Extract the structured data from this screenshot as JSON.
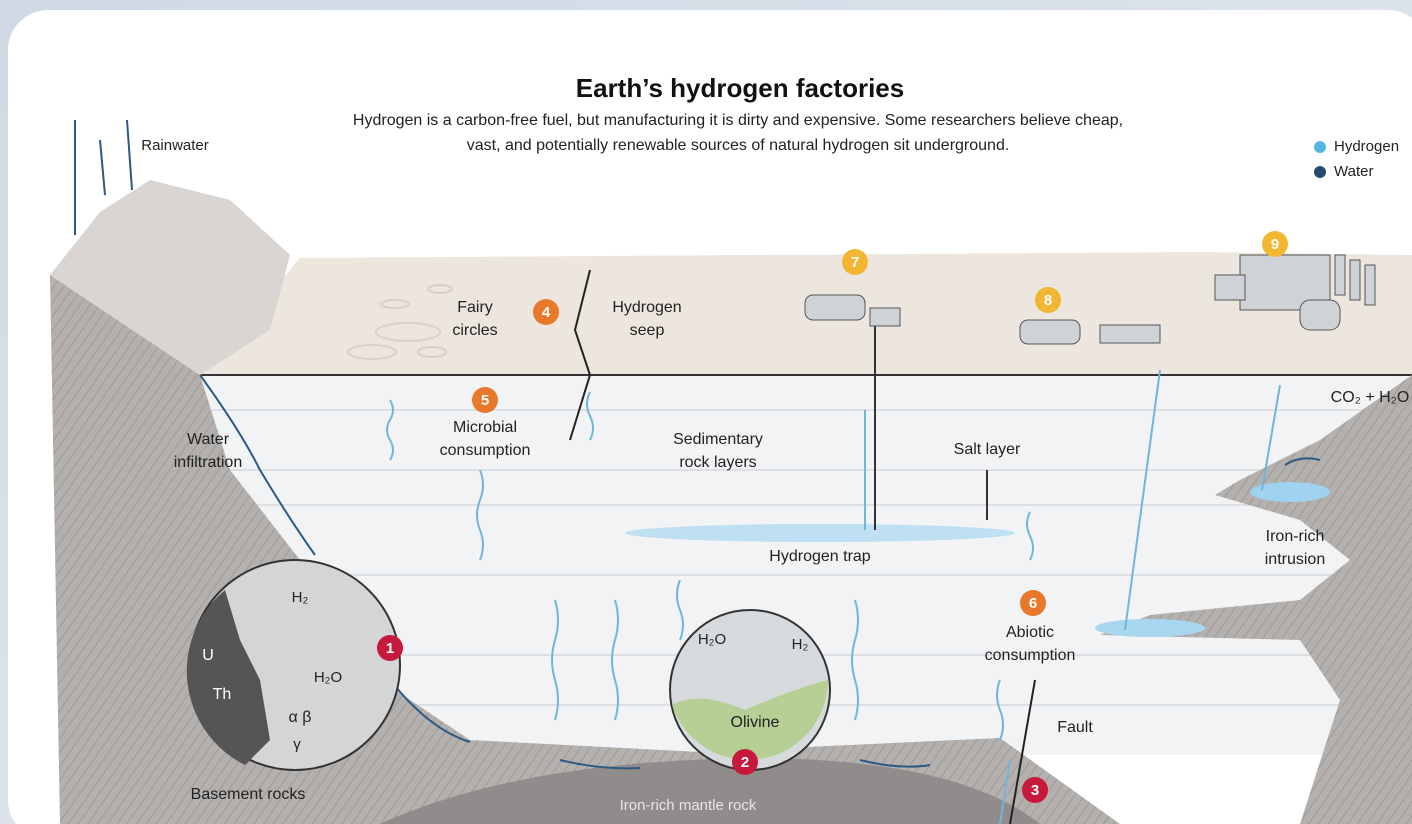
{
  "title": "Earth’s hydrogen factories",
  "subtitle": [
    "Hydrogen is a carbon-free fuel, but manufacturing it is dirty and expensive. Some researchers believe cheap,",
    "vast, and potentially renewable sources of natural hydrogen sit underground."
  ],
  "legend": [
    "Hydrogen",
    "Water"
  ],
  "labels": {
    "rainwater": [
      "Rainwater"
    ],
    "fairy_circles": [
      "Fairy",
      "circles"
    ],
    "hydrogen_seep": [
      "Hydrogen",
      "seep"
    ],
    "microbial_consumption": [
      "Microbial",
      "consumption"
    ],
    "water_infiltration": [
      "Water",
      "infiltration"
    ],
    "sedimentary_rock_layers": [
      "Sedimentary",
      "rock layers"
    ],
    "salt_layer": [
      "Salt layer"
    ],
    "co2_h2o": [
      "CO₂ + H₂O"
    ],
    "iron_rich_intrusion": [
      "Iron-rich",
      "intrusion"
    ],
    "hydrogen_trap": [
      "Hydrogen trap"
    ],
    "abiotic_consumption": [
      "Abiotic",
      "consumption"
    ],
    "fault": [
      "Fault"
    ],
    "basement_rocks": [
      "Basement rocks"
    ],
    "iron_rich_mantle_rock": [
      "Iron-rich mantle rock"
    ],
    "olivine": [
      "Olivine"
    ],
    "circle1_h2": [
      "H₂"
    ],
    "circle1_u": [
      "U"
    ],
    "circle1_th": [
      "Th"
    ],
    "circle1_h2o": [
      "H₂O"
    ],
    "circle1_alpha_beta": [
      "α  β"
    ],
    "circle1_gamma": [
      "γ"
    ],
    "circle2_h2o": [
      "H₂O"
    ],
    "circle2_h2": [
      "H₂"
    ]
  },
  "markers": [
    "1",
    "2",
    "3",
    "4",
    "5",
    "6",
    "7",
    "8",
    "9"
  ]
}
